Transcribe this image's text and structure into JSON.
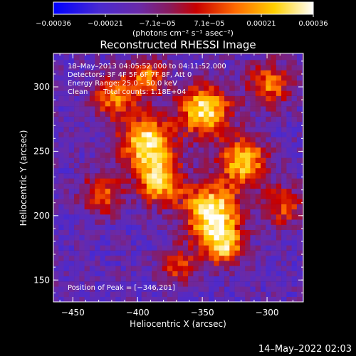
{
  "chart_data": {
    "type": "heatmap",
    "title": "Reconstructed RHESSI Image",
    "xlabel": "Heliocentric X (arcsec)",
    "ylabel": "Heliocentric Y (arcsec)",
    "xlim": [
      -465,
      -272
    ],
    "ylim": [
      133,
      326
    ],
    "x_ticks": [
      -450,
      -400,
      -350,
      -300
    ],
    "x_tick_labels": [
      "−450",
      "−400",
      "−350",
      "−300"
    ],
    "y_ticks": [
      150,
      200,
      250,
      300
    ],
    "y_tick_labels": [
      "150",
      "200",
      "250",
      "300"
    ],
    "colorbar": {
      "range": [
        -0.00036,
        0.00036
      ],
      "tick_labels": [
        "−0.00036",
        "−0.00021",
        "−7.1e−05",
        "7.1e−05",
        "0.00021",
        "0.00036"
      ],
      "unit_label": "(photons cm⁻² s⁻¹ asec⁻²)",
      "colors": [
        "#0000ff",
        "#6a2aa8",
        "#8a1a5a",
        "#c80000",
        "#ff6a00",
        "#ffd000",
        "#ffffff"
      ]
    },
    "annotations": {
      "time_range": "18–May–2013 04:05:52.000 to 04:11:52.000",
      "detectors": "Detectors: 3F 4F 5F 6F 7F 8F, Att 0",
      "energy_range": "Energy Range: 25.0 – 50.0 keV",
      "method": "Clean",
      "total_counts": "Total counts: 1.18E+04",
      "peak_position": "Position of Peak = [−346,201]"
    },
    "peak": [
      -346,
      201
    ],
    "grid": false,
    "sources": [
      {
        "x": -395,
        "y": 255,
        "intensity": 0.95,
        "sigma": 14
      },
      {
        "x": -385,
        "y": 225,
        "intensity": 0.85,
        "sigma": 12
      },
      {
        "x": -345,
        "y": 201,
        "intensity": 1.0,
        "sigma": 15
      },
      {
        "x": -350,
        "y": 280,
        "intensity": 0.9,
        "sigma": 14
      },
      {
        "x": -320,
        "y": 240,
        "intensity": 0.8,
        "sigma": 13
      },
      {
        "x": -420,
        "y": 290,
        "intensity": 0.6,
        "sigma": 12
      },
      {
        "x": -395,
        "y": 305,
        "intensity": 0.65,
        "sigma": 10
      },
      {
        "x": -300,
        "y": 300,
        "intensity": 0.6,
        "sigma": 12
      },
      {
        "x": -335,
        "y": 175,
        "intensity": 0.75,
        "sigma": 11
      },
      {
        "x": -430,
        "y": 215,
        "intensity": 0.55,
        "sigma": 11
      },
      {
        "x": -290,
        "y": 205,
        "intensity": 0.5,
        "sigma": 11
      },
      {
        "x": -370,
        "y": 160,
        "intensity": 0.5,
        "sigma": 10
      }
    ]
  },
  "footer": {
    "timestamp": "14–May–2022 02:03"
  }
}
